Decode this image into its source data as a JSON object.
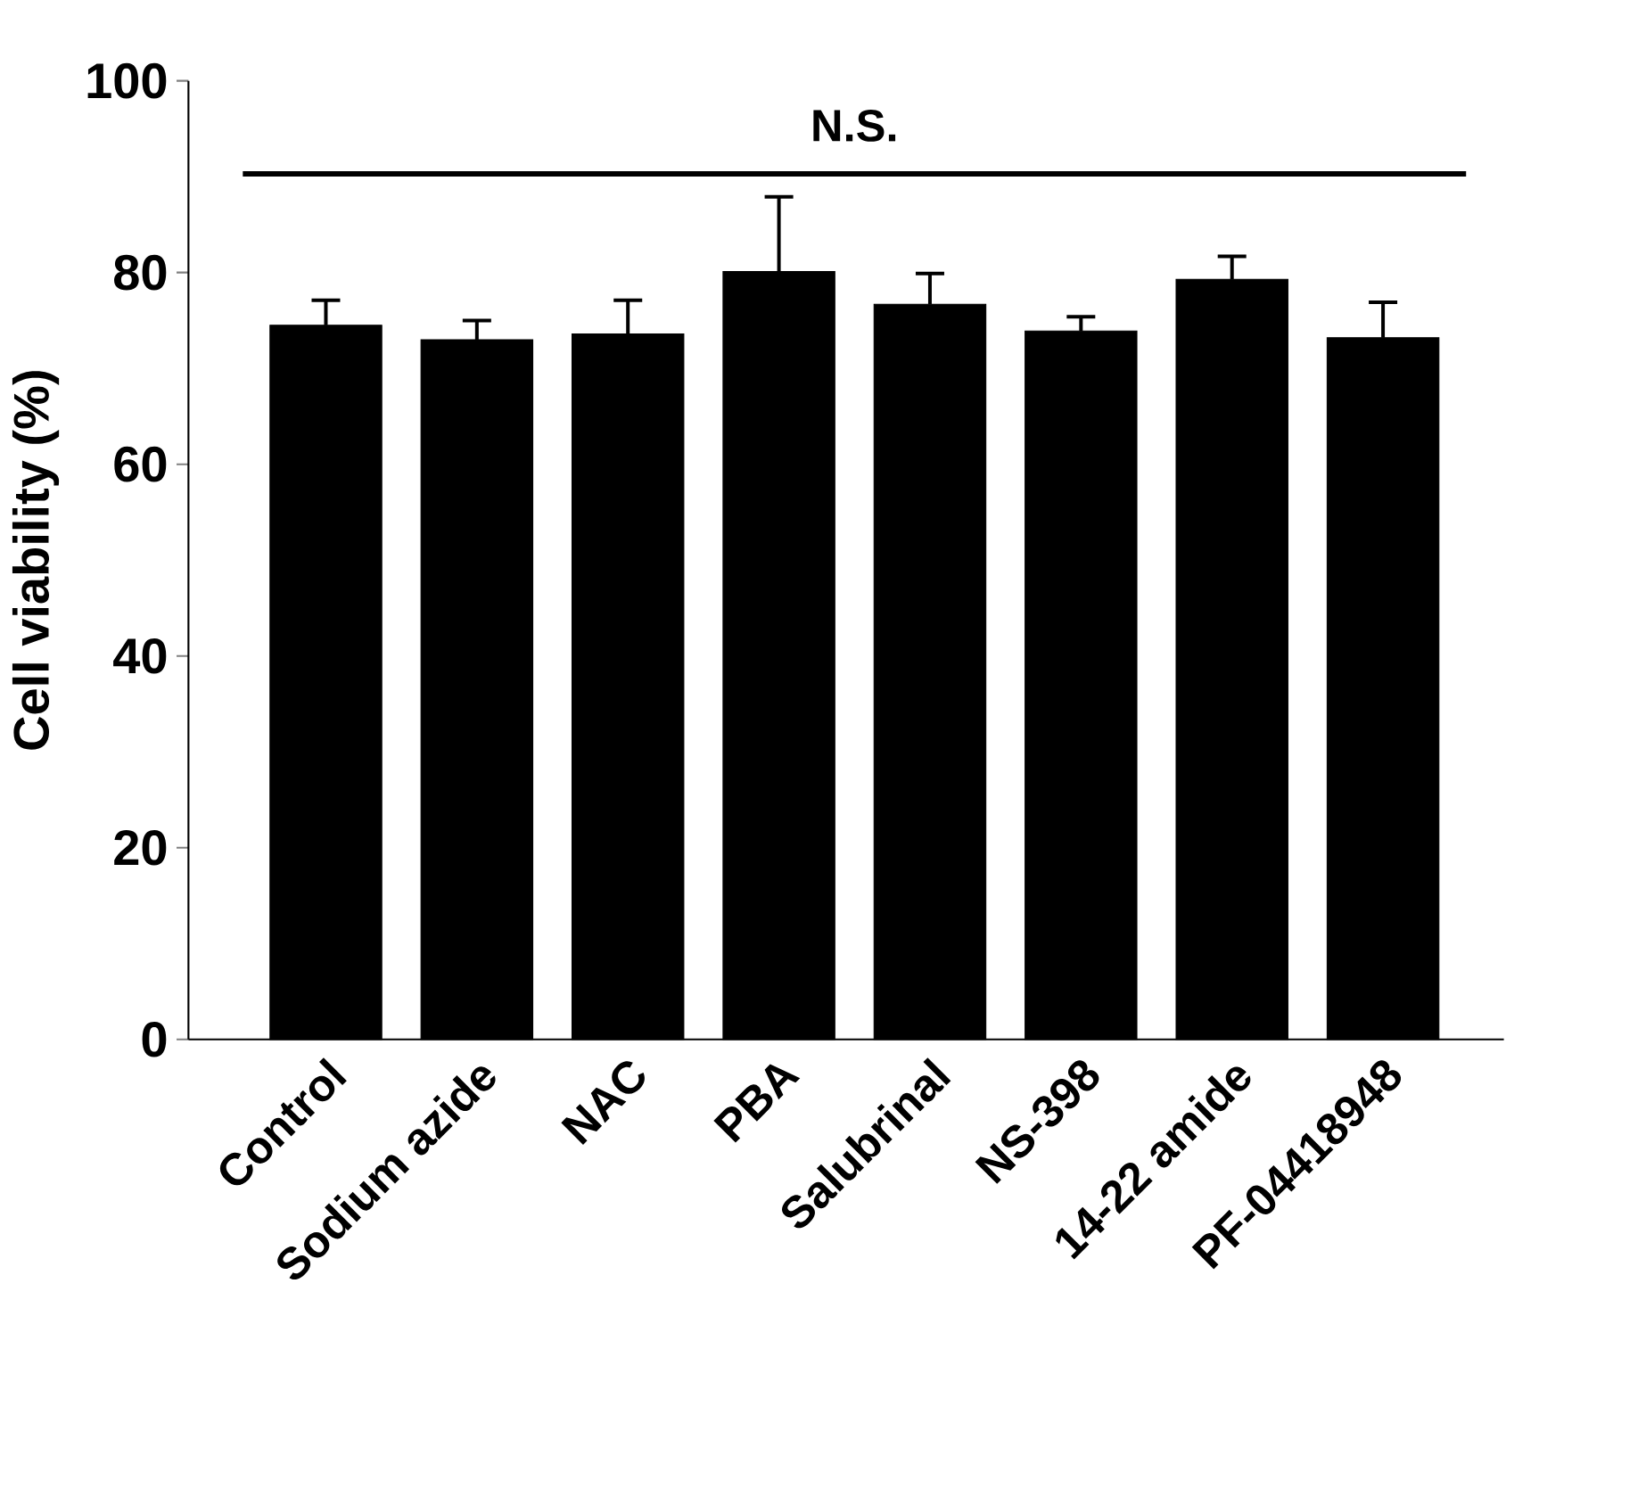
{
  "chart_data": {
    "type": "bar",
    "ylabel": "Cell viability (%)",
    "categories": [
      "Control",
      "Sodium azide",
      "NAC",
      "PBA",
      "Salubrinal",
      "NS-398",
      "14-22 amide",
      "PF-04418948"
    ],
    "values": [
      74.5,
      73.0,
      73.6,
      80.1,
      76.7,
      73.9,
      79.3,
      73.2
    ],
    "errors": [
      2.6,
      2.0,
      3.5,
      7.8,
      3.2,
      1.5,
      2.4,
      3.7
    ],
    "color": "#000000",
    "ylim": [
      0,
      100
    ],
    "yticks": [
      0,
      20,
      40,
      60,
      80,
      100
    ],
    "grid": false,
    "ref_lines": [
      {
        "axis": "y",
        "value": 90.3,
        "label": "N.S."
      }
    ]
  }
}
